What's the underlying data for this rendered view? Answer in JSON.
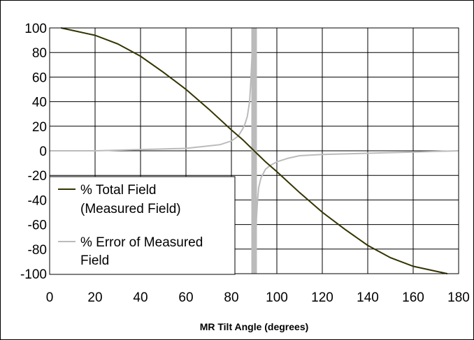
{
  "chart_data": {
    "type": "line",
    "title": "",
    "xlabel": "MR Tilt Angle (degrees)",
    "ylabel": "",
    "xlim": [
      0,
      180
    ],
    "ylim": [
      -100,
      100
    ],
    "x_ticks": [
      "0",
      "20",
      "40",
      "60",
      "80",
      "100",
      "120",
      "140",
      "160",
      "180"
    ],
    "y_ticks": [
      "100",
      "80",
      "60",
      "40",
      "20",
      "0",
      "-20",
      "-40",
      "-60",
      "-80",
      "-100"
    ],
    "grid": true,
    "legend": {
      "placement": "lower-left",
      "entries": [
        {
          "line1": "% Total Field",
          "line2": "(Measured Field)",
          "color": "#333300"
        },
        {
          "line1": "% Error of Measured",
          "line2": "Field",
          "color": "#bbbbbb"
        }
      ]
    },
    "vertical_marker": {
      "x": 90,
      "color": "#bbbbbb"
    },
    "series": [
      {
        "name": "% Total Field (Measured Field)",
        "color": "#333300",
        "x": [
          5,
          10,
          20,
          30,
          40,
          50,
          60,
          70,
          80,
          85,
          90,
          95,
          100,
          110,
          120,
          130,
          140,
          150,
          160,
          170,
          175
        ],
        "y": [
          100,
          98,
          94,
          87,
          77,
          64,
          50,
          34,
          17,
          9,
          0,
          -9,
          -17,
          -34,
          -50,
          -64,
          -77,
          -87,
          -94,
          -98,
          -100
        ]
      },
      {
        "name": "% Error of Measured Field",
        "color": "#bbbbbb",
        "x": [
          0,
          20,
          40,
          60,
          70,
          75,
          80,
          83,
          85,
          86,
          87,
          88,
          88.5,
          89,
          89.3,
          89.6,
          90.4,
          90.7,
          91,
          91.5,
          92,
          93,
          95,
          97,
          100,
          105,
          110,
          120,
          140,
          160,
          180
        ],
        "y": [
          0,
          0,
          1,
          2,
          4,
          5,
          8,
          12,
          18,
          22,
          28,
          40,
          55,
          75,
          85,
          100,
          -100,
          -75,
          -55,
          -40,
          -30,
          -22,
          -15,
          -12,
          -9,
          -6,
          -4,
          -3,
          -2,
          -1,
          0
        ]
      }
    ]
  }
}
